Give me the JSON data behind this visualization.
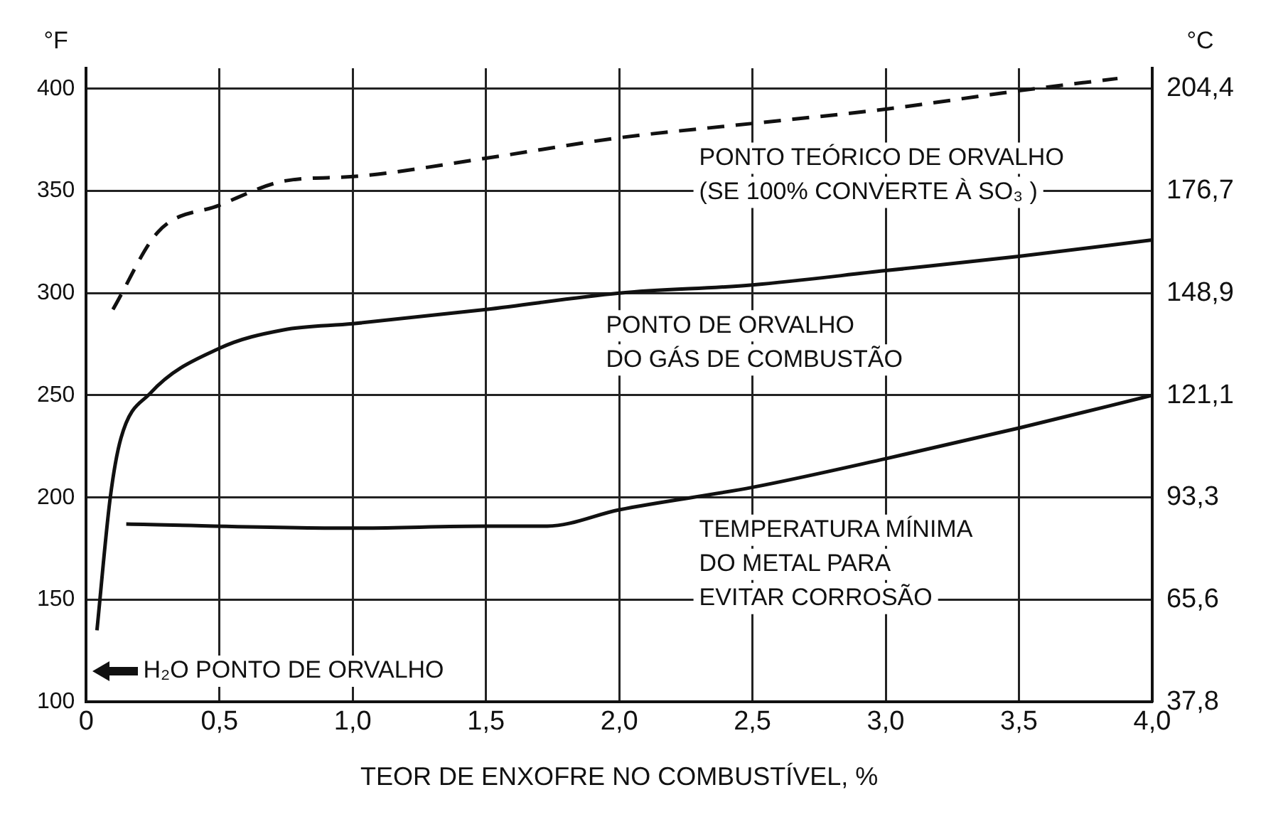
{
  "chart_data": {
    "type": "line",
    "xlabel": "TEOR DE ENXOFRE NO COMBUSTÍVEL, %",
    "ylabel": "°F",
    "y2label": "°C",
    "xlim": [
      0,
      4
    ],
    "xticks": [
      {
        "value": 0,
        "label": "0"
      },
      {
        "value": 0.5,
        "label": "0,5"
      },
      {
        "value": 1,
        "label": "1,0"
      },
      {
        "value": 1.5,
        "label": "1,5"
      },
      {
        "value": 2,
        "label": "2,0"
      },
      {
        "value": 2.5,
        "label": "2,5"
      },
      {
        "value": 3,
        "label": "3,0"
      },
      {
        "value": 3.5,
        "label": "3,5"
      },
      {
        "value": 4,
        "label": "4,0"
      }
    ],
    "ylim": [
      100,
      410
    ],
    "yticks": [
      100,
      150,
      200,
      250,
      300,
      350,
      400
    ],
    "y2lim": [
      37.8,
      210
    ],
    "y2ticks": [
      {
        "value": 37.8,
        "label": "37,8"
      },
      {
        "value": 65.6,
        "label": "65,6"
      },
      {
        "value": 93.3,
        "label": "93,3"
      },
      {
        "value": 121.1,
        "label": "121,1"
      },
      {
        "value": 148.9,
        "label": "148,9"
      },
      {
        "value": 176.7,
        "label": "176,7"
      },
      {
        "value": 204.4,
        "label": "204,4"
      }
    ],
    "grid": true,
    "legend": false,
    "marker": "none",
    "series": [
      {
        "name": "PONTO TEÓRICO DE ORVALHO\n(SE 100% CONVERTE À SO₃ )",
        "color": "#111111",
        "line_style": "dashed",
        "x": [
          0.1,
          0.27,
          0.5,
          0.75,
          1.0,
          1.5,
          2.0,
          2.5,
          3.0,
          3.5,
          3.87
        ],
        "values": [
          292,
          330,
          343,
          355,
          357,
          366,
          376,
          383,
          390,
          399,
          405
        ]
      },
      {
        "name": "PONTO DE ORVALHO\nDO GÁS DE COMBUSTÃO",
        "color": "#111111",
        "line_style": "solid",
        "x": [
          0.04,
          0.09,
          0.13,
          0.24,
          0.5,
          0.74,
          1.0,
          1.5,
          2.0,
          2.5,
          3.0,
          3.5,
          4.0
        ],
        "values": [
          135,
          200,
          229,
          251,
          273,
          282,
          285,
          292,
          300,
          304,
          311,
          318,
          326
        ]
      },
      {
        "name": "TEMPERATURA MÍNIMA\nDO METAL PARA\nEVITAR CORROSÃO",
        "color": "#111111",
        "line_style": "solid",
        "x": [
          0.15,
          1.0,
          1.5,
          1.73,
          2.0,
          2.5,
          3.0,
          3.5,
          4.0
        ],
        "values": [
          187,
          185,
          186,
          186,
          194,
          205,
          219,
          234,
          250
        ]
      }
    ],
    "annotations": [
      "H₂O PONTO DE ORVALHO"
    ]
  }
}
